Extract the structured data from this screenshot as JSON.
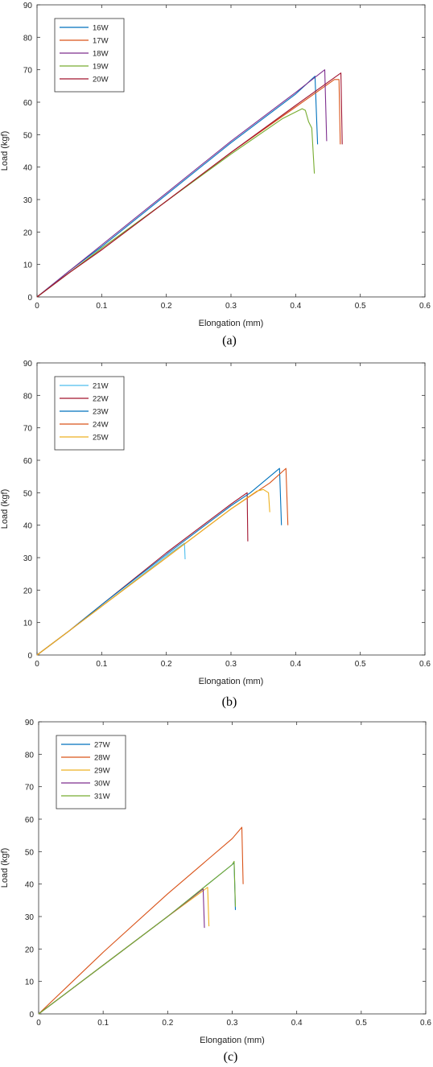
{
  "chart_data": [
    {
      "type": "line",
      "caption": "(a)",
      "xlabel": "Elongation (mm)",
      "ylabel": "Load (kgf)",
      "xlim": [
        0,
        0.6
      ],
      "ylim": [
        0,
        90
      ],
      "xticks": [
        "0",
        "0.1",
        "0.2",
        "0.3",
        "0.4",
        "0.5",
        "0.6"
      ],
      "yticks": [
        "0",
        "10",
        "20",
        "30",
        "40",
        "50",
        "60",
        "70",
        "80",
        "90"
      ],
      "grid": false,
      "legend_position": "top-left",
      "series": [
        {
          "name": "16W",
          "color": "#0072BD",
          "points": [
            [
              0,
              0
            ],
            [
              0.05,
              8
            ],
            [
              0.1,
              15.5
            ],
            [
              0.2,
              31.5
            ],
            [
              0.3,
              47.5
            ],
            [
              0.4,
              62.5
            ],
            [
              0.43,
              68
            ],
            [
              0.434,
              47
            ]
          ]
        },
        {
          "name": "17W",
          "color": "#D95319",
          "points": [
            [
              0,
              0
            ],
            [
              0.05,
              7.5
            ],
            [
              0.1,
              14.5
            ],
            [
              0.2,
              29.5
            ],
            [
              0.3,
              44.5
            ],
            [
              0.4,
              58.5
            ],
            [
              0.46,
              67
            ],
            [
              0.467,
              67
            ],
            [
              0.469,
              47
            ]
          ]
        },
        {
          "name": "18W",
          "color": "#7E2F8E",
          "points": [
            [
              0,
              0
            ],
            [
              0.05,
              8
            ],
            [
              0.1,
              16
            ],
            [
              0.2,
              32
            ],
            [
              0.3,
              48
            ],
            [
              0.4,
              63
            ],
            [
              0.445,
              70
            ],
            [
              0.448,
              48
            ]
          ]
        },
        {
          "name": "19W",
          "color": "#77AC30",
          "points": [
            [
              0,
              0
            ],
            [
              0.05,
              7.5
            ],
            [
              0.1,
              15
            ],
            [
              0.2,
              29.5
            ],
            [
              0.3,
              44
            ],
            [
              0.38,
              55
            ],
            [
              0.41,
              58
            ],
            [
              0.415,
              57.5
            ],
            [
              0.42,
              54
            ],
            [
              0.425,
              52
            ],
            [
              0.429,
              38
            ]
          ]
        },
        {
          "name": "20W",
          "color": "#A2142F",
          "points": [
            [
              0,
              0
            ],
            [
              0.05,
              7.5
            ],
            [
              0.1,
              14.5
            ],
            [
              0.2,
              29.5
            ],
            [
              0.3,
              44.5
            ],
            [
              0.4,
              59
            ],
            [
              0.47,
              69
            ],
            [
              0.472,
              47
            ]
          ]
        }
      ]
    },
    {
      "type": "line",
      "caption": "(b)",
      "xlabel": "Elongation (mm)",
      "ylabel": "Load (kgf)",
      "xlim": [
        0,
        0.6
      ],
      "ylim": [
        0,
        90
      ],
      "xticks": [
        "0",
        "0.1",
        "0.2",
        "0.3",
        "0.4",
        "0.5",
        "0.6"
      ],
      "yticks": [
        "0",
        "10",
        "20",
        "30",
        "40",
        "50",
        "60",
        "70",
        "80",
        "90"
      ],
      "grid": false,
      "legend_position": "top-left",
      "series": [
        {
          "name": "21W",
          "color": "#4DBEEE",
          "points": [
            [
              0,
              0
            ],
            [
              0.05,
              7.5
            ],
            [
              0.1,
              15
            ],
            [
              0.2,
              30.5
            ],
            [
              0.228,
              34.5
            ],
            [
              0.229,
              29.5
            ]
          ]
        },
        {
          "name": "22W",
          "color": "#A2142F",
          "points": [
            [
              0,
              0
            ],
            [
              0.05,
              7.5
            ],
            [
              0.1,
              15.5
            ],
            [
              0.2,
              31.5
            ],
            [
              0.3,
              46.5
            ],
            [
              0.325,
              50
            ],
            [
              0.326,
              35
            ]
          ]
        },
        {
          "name": "23W",
          "color": "#0072BD",
          "points": [
            [
              0,
              0
            ],
            [
              0.05,
              7.5
            ],
            [
              0.1,
              15.5
            ],
            [
              0.2,
              31
            ],
            [
              0.3,
              46
            ],
            [
              0.33,
              50
            ],
            [
              0.375,
              57.5
            ],
            [
              0.378,
              40
            ]
          ]
        },
        {
          "name": "24W",
          "color": "#D95319",
          "points": [
            [
              0,
              0
            ],
            [
              0.05,
              7.5
            ],
            [
              0.1,
              15
            ],
            [
              0.2,
              30
            ],
            [
              0.3,
              45
            ],
            [
              0.36,
              53
            ],
            [
              0.385,
              57.5
            ],
            [
              0.388,
              40
            ]
          ]
        },
        {
          "name": "25W",
          "color": "#EDB120",
          "points": [
            [
              0,
              0
            ],
            [
              0.05,
              7.5
            ],
            [
              0.1,
              15
            ],
            [
              0.2,
              30
            ],
            [
              0.3,
              45
            ],
            [
              0.34,
              50.5
            ],
            [
              0.35,
              51
            ],
            [
              0.358,
              50
            ],
            [
              0.36,
              44
            ]
          ]
        }
      ]
    },
    {
      "type": "line",
      "caption": "(c)",
      "xlabel": "Elongation (mm)",
      "ylabel": "Load (kgf)",
      "xlim": [
        0,
        0.6
      ],
      "ylim": [
        0,
        90
      ],
      "xticks": [
        "0",
        "0.1",
        "0.2",
        "0.3",
        "0.4",
        "0.5",
        "0.6"
      ],
      "yticks": [
        "0",
        "10",
        "20",
        "30",
        "40",
        "50",
        "60",
        "70",
        "80",
        "90"
      ],
      "grid": false,
      "legend_position": "top-left",
      "series": [
        {
          "name": "27W",
          "color": "#0072BD",
          "points": [
            [
              0,
              0
            ],
            [
              0.05,
              7.5
            ],
            [
              0.1,
              15
            ],
            [
              0.2,
              30
            ],
            [
              0.3,
              46
            ],
            [
              0.303,
              46.5
            ],
            [
              0.305,
              32
            ]
          ]
        },
        {
          "name": "28W",
          "color": "#D95319",
          "points": [
            [
              0,
              0
            ],
            [
              0.05,
              9.5
            ],
            [
              0.1,
              19
            ],
            [
              0.2,
              37
            ],
            [
              0.3,
              54
            ],
            [
              0.315,
              57.5
            ],
            [
              0.317,
              40
            ]
          ]
        },
        {
          "name": "29W",
          "color": "#EDB120",
          "points": [
            [
              0,
              0
            ],
            [
              0.05,
              7.5
            ],
            [
              0.1,
              15
            ],
            [
              0.2,
              30
            ],
            [
              0.262,
              39
            ],
            [
              0.264,
              27
            ]
          ]
        },
        {
          "name": "30W",
          "color": "#7E2F8E",
          "points": [
            [
              0,
              0
            ],
            [
              0.05,
              7.5
            ],
            [
              0.1,
              15
            ],
            [
              0.2,
              30
            ],
            [
              0.255,
              38.5
            ],
            [
              0.257,
              26.5
            ]
          ]
        },
        {
          "name": "31W",
          "color": "#77AC30",
          "points": [
            [
              0,
              0
            ],
            [
              0.05,
              7.5
            ],
            [
              0.1,
              15
            ],
            [
              0.2,
              30
            ],
            [
              0.3,
              46
            ],
            [
              0.303,
              47
            ],
            [
              0.305,
              33
            ]
          ]
        }
      ]
    }
  ]
}
